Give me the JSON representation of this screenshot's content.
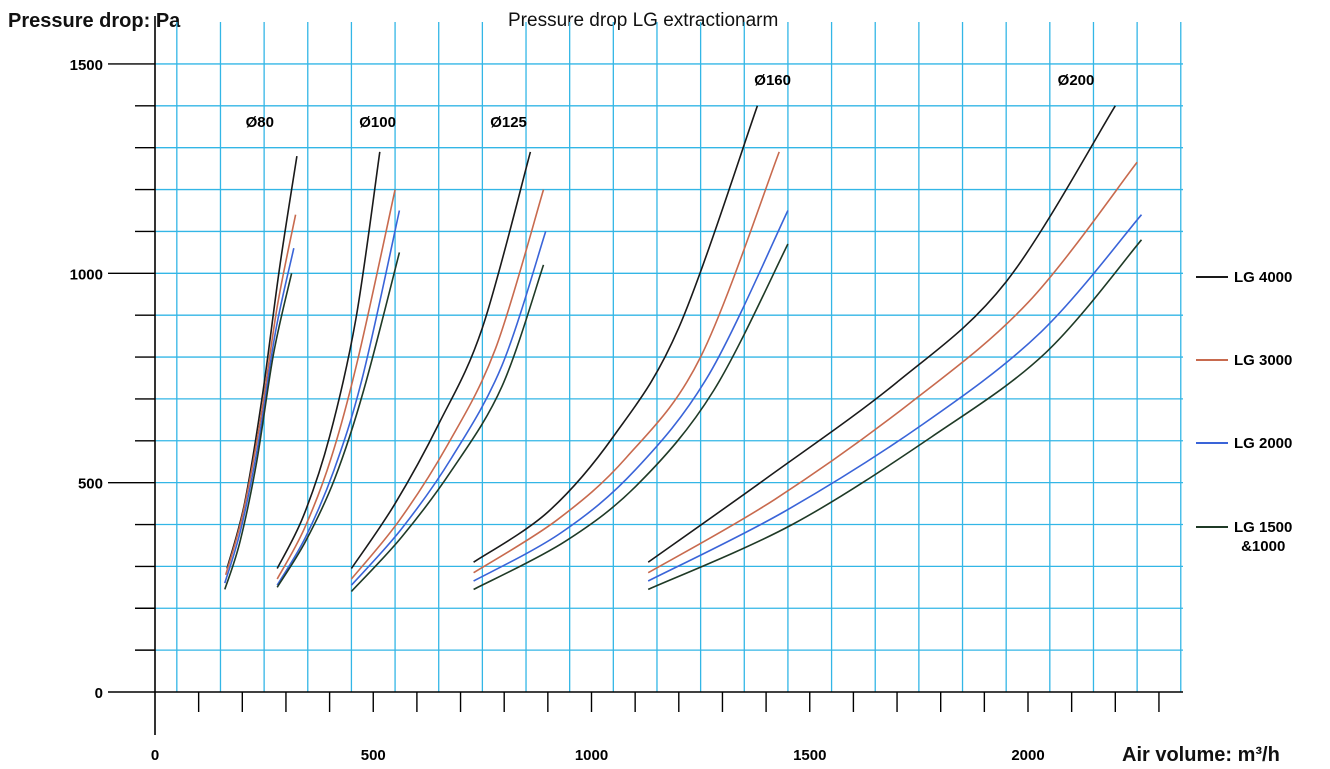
{
  "chart_data": {
    "type": "line",
    "title": "Pressure drop LG extractionarm",
    "ylabel": "Pressure drop: Pa",
    "xlabel": "Air volume: m³/h",
    "xlim": [
      0,
      2350
    ],
    "ylim": [
      0,
      1500
    ],
    "x_ticks": [
      0,
      500,
      1000,
      1500,
      2000
    ],
    "y_ticks": [
      0,
      500,
      1000,
      1500
    ],
    "grid": true,
    "legend_position": "right",
    "colors": {
      "LG 4000": "#1a1a1a",
      "LG 3000": "#c86a4e",
      "LG 2000": "#3a64d8",
      "LG 1500 &1000": "#1f3a26",
      "grid": "#33b6e6",
      "axis": "#000000"
    },
    "series_names": [
      "LG 4000",
      "LG 3000",
      "LG 2000",
      "LG 1500 &1000"
    ],
    "legend_labels": [
      "LG 4000",
      "LG 3000",
      "LG 2000",
      "LG 1500\n&1000"
    ],
    "annotations": [
      "Ø80",
      "Ø100",
      "Ø125",
      "Ø160",
      "Ø200"
    ],
    "groups": [
      {
        "label": "Ø80",
        "label_at": [
          240,
          1350
        ],
        "series": [
          {
            "name": "LG 4000",
            "x": [
              165,
              205,
              245,
              285,
              325
            ],
            "y": [
              295,
              450,
              700,
              1010,
              1280
            ]
          },
          {
            "name": "LG 3000",
            "x": [
              162,
              200,
              240,
              280,
              322
            ],
            "y": [
              280,
              420,
              640,
              920,
              1140
            ]
          },
          {
            "name": "LG 2000",
            "x": [
              160,
              197,
              236,
              276,
              318
            ],
            "y": [
              260,
              390,
              590,
              860,
              1060
            ]
          },
          {
            "name": "LG 1500 &1000",
            "x": [
              160,
              195,
              233,
              272,
              313
            ],
            "y": [
              245,
              360,
              550,
              810,
              1000
            ]
          }
        ]
      },
      {
        "label": "Ø100",
        "label_at": [
          510,
          1350
        ],
        "series": [
          {
            "name": "LG 4000",
            "x": [
              280,
              340,
              400,
              460,
              515
            ],
            "y": [
              295,
              420,
              610,
              890,
              1290
            ]
          },
          {
            "name": "LG 3000",
            "x": [
              280,
              342,
              404,
              466,
              550
            ],
            "y": [
              270,
              390,
              560,
              800,
              1200
            ]
          },
          {
            "name": "LG 2000",
            "x": [
              280,
              345,
              410,
              475,
              560
            ],
            "y": [
              255,
              370,
              530,
              750,
              1150
            ]
          },
          {
            "name": "LG 1500 &1000",
            "x": [
              280,
              345,
              412,
              478,
              560
            ],
            "y": [
              250,
              360,
              510,
              720,
              1050
            ]
          }
        ]
      },
      {
        "label": "Ø125",
        "label_at": [
          810,
          1350
        ],
        "series": [
          {
            "name": "LG 4000",
            "x": [
              450,
              550,
              650,
              750,
              860
            ],
            "y": [
              295,
              450,
              640,
              870,
              1290
            ]
          },
          {
            "name": "LG 3000",
            "x": [
              450,
              560,
              670,
              780,
              890
            ],
            "y": [
              270,
              410,
              590,
              820,
              1200
            ]
          },
          {
            "name": "LG 2000",
            "x": [
              450,
              565,
              680,
              795,
              895
            ],
            "y": [
              255,
              390,
              560,
              780,
              1100
            ]
          },
          {
            "name": "LG 1500 &1000",
            "x": [
              450,
              565,
              680,
              795,
              890
            ],
            "y": [
              240,
              370,
              530,
              730,
              1020
            ]
          }
        ]
      },
      {
        "label": "Ø160",
        "label_at": [
          1415,
          1450
        ],
        "series": [
          {
            "name": "LG 4000",
            "x": [
              730,
              900,
              1050,
              1200,
              1380
            ],
            "y": [
              310,
              430,
              610,
              870,
              1400
            ]
          },
          {
            "name": "LG 3000",
            "x": [
              730,
              920,
              1080,
              1250,
              1430
            ],
            "y": [
              285,
              410,
              560,
              800,
              1290
            ]
          },
          {
            "name": "LG 2000",
            "x": [
              730,
              930,
              1100,
              1270,
              1450
            ],
            "y": [
              265,
              380,
              530,
              760,
              1150
            ]
          },
          {
            "name": "LG 1500 &1000",
            "x": [
              730,
              940,
              1110,
              1280,
              1450
            ],
            "y": [
              245,
              360,
              500,
              720,
              1070
            ]
          }
        ]
      },
      {
        "label": "Ø200",
        "label_at": [
          2110,
          1450
        ],
        "series": [
          {
            "name": "LG 4000",
            "x": [
              1130,
              1400,
              1700,
              1950,
              2200
            ],
            "y": [
              310,
              510,
              740,
              980,
              1400
            ]
          },
          {
            "name": "LG 3000",
            "x": [
              1130,
              1420,
              1730,
              2000,
              2250
            ],
            "y": [
              285,
              460,
              690,
              930,
              1265
            ]
          },
          {
            "name": "LG 2000",
            "x": [
              1130,
              1440,
              1760,
              2030,
              2260
            ],
            "y": [
              265,
              430,
              640,
              860,
              1140
            ]
          },
          {
            "name": "LG 1500 &1000",
            "x": [
              1130,
              1460,
              1780,
              2040,
              2260
            ],
            "y": [
              245,
              400,
              610,
              810,
              1080
            ]
          }
        ]
      }
    ]
  }
}
